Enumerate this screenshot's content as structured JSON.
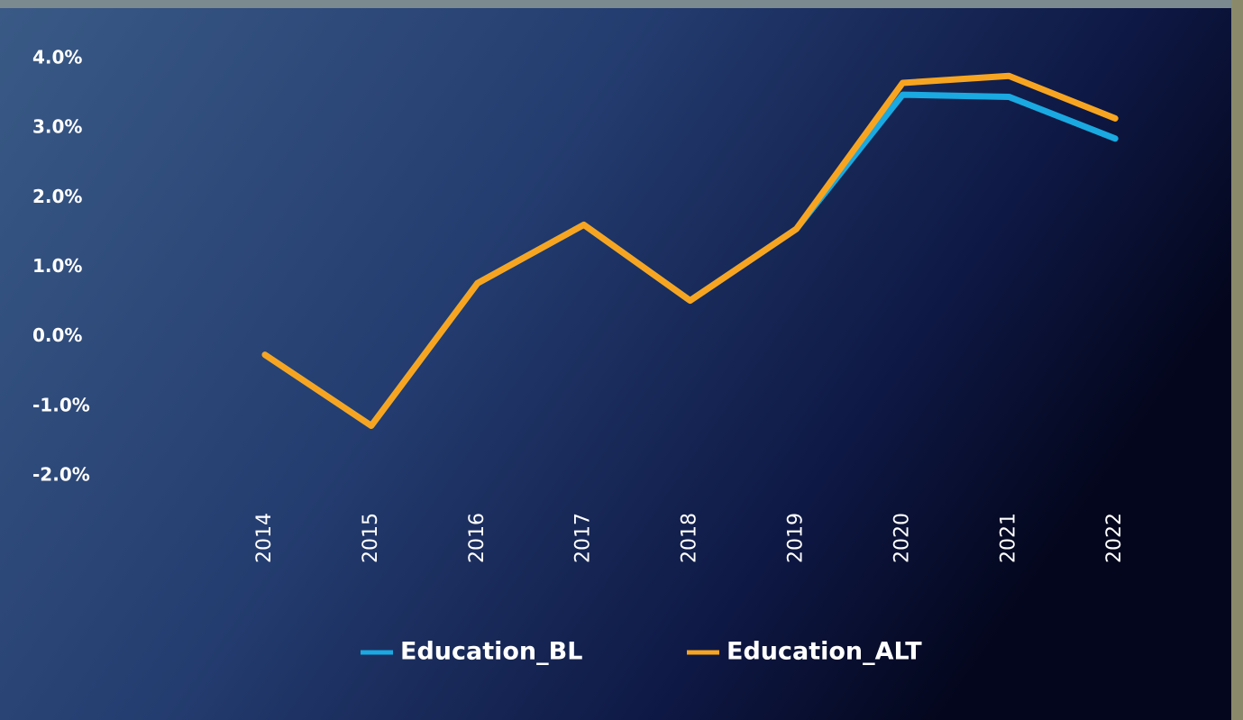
{
  "chart_data": {
    "type": "line",
    "x": [
      "2014",
      "2015",
      "2016",
      "2017",
      "2018",
      "2019",
      "2020",
      "2021",
      "2022"
    ],
    "series": [
      {
        "name": "Education_BL",
        "color": "#1aa9e1",
        "values": [
          -0.26,
          -1.28,
          0.77,
          1.61,
          0.52,
          1.55,
          3.48,
          3.45,
          2.85
        ]
      },
      {
        "name": "Education_ALT",
        "color": "#f7a521",
        "values": [
          -0.26,
          -1.28,
          0.77,
          1.61,
          0.52,
          1.55,
          3.65,
          3.75,
          3.14
        ]
      }
    ],
    "ylim": [
      -2,
      4
    ],
    "yticks": [
      {
        "value": 4,
        "label": "4.0%"
      },
      {
        "value": 3,
        "label": "3.0%"
      },
      {
        "value": 2,
        "label": "2.0%"
      },
      {
        "value": 1,
        "label": "1.0%"
      },
      {
        "value": 0,
        "label": "0.0%"
      },
      {
        "value": -1,
        "label": "-1.0%"
      },
      {
        "value": -2,
        "label": "-2.0%"
      }
    ],
    "grid": false
  }
}
